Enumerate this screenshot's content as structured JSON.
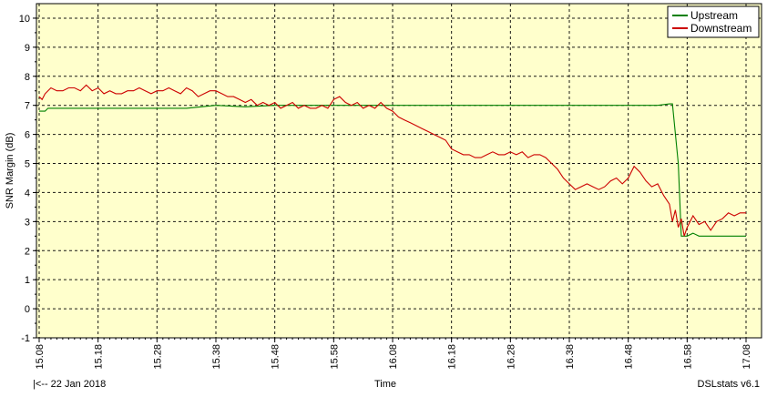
{
  "chart_data": {
    "type": "line",
    "title": "",
    "xlabel": "Time",
    "ylabel": "SNR Margin (dB)",
    "ylim": [
      -1,
      10.5
    ],
    "xlim_minutes": [
      0,
      120
    ],
    "y_ticks": [
      -1,
      0,
      1,
      2,
      3,
      4,
      5,
      6,
      7,
      8,
      9,
      10
    ],
    "x_ticks": [
      "15.08",
      "15.18",
      "15.28",
      "15.38",
      "15.48",
      "15.58",
      "16.08",
      "16.18",
      "16.28",
      "16.38",
      "16.48",
      "16.58",
      "17.08"
    ],
    "x_tick_minutes": [
      0,
      10,
      20,
      30,
      40,
      50,
      60,
      70,
      80,
      90,
      100,
      110,
      120
    ],
    "grid": true,
    "legend_position": "top-right",
    "background": "#ffffcc",
    "series": [
      {
        "name": "Upstream",
        "color": "#008000",
        "points": [
          [
            0,
            6.8
          ],
          [
            1,
            6.8
          ],
          [
            1.5,
            6.9
          ],
          [
            5,
            6.9
          ],
          [
            10,
            6.9
          ],
          [
            15,
            6.9
          ],
          [
            20,
            6.9
          ],
          [
            25,
            6.9
          ],
          [
            30,
            7.0
          ],
          [
            35,
            6.95
          ],
          [
            40,
            7.0
          ],
          [
            45,
            7.0
          ],
          [
            50,
            7.0
          ],
          [
            55,
            7.0
          ],
          [
            60,
            7.0
          ],
          [
            65,
            7.0
          ],
          [
            70,
            7.0
          ],
          [
            80,
            7.0
          ],
          [
            90,
            7.0
          ],
          [
            100,
            7.0
          ],
          [
            105,
            7.0
          ],
          [
            107,
            7.05
          ],
          [
            107.5,
            7.05
          ],
          [
            108.5,
            5.0
          ],
          [
            109,
            2.5
          ],
          [
            110,
            2.5
          ],
          [
            111,
            2.6
          ],
          [
            112,
            2.5
          ],
          [
            115,
            2.5
          ],
          [
            118,
            2.5
          ],
          [
            120,
            2.5
          ]
        ]
      },
      {
        "name": "Downstream",
        "color": "#cc0000",
        "points": [
          [
            0,
            7.3
          ],
          [
            0.5,
            7.2
          ],
          [
            1,
            7.4
          ],
          [
            2,
            7.6
          ],
          [
            3,
            7.5
          ],
          [
            4,
            7.5
          ],
          [
            5,
            7.6
          ],
          [
            6,
            7.6
          ],
          [
            7,
            7.5
          ],
          [
            8,
            7.7
          ],
          [
            9,
            7.5
          ],
          [
            10,
            7.6
          ],
          [
            11,
            7.4
          ],
          [
            12,
            7.5
          ],
          [
            13,
            7.4
          ],
          [
            14,
            7.4
          ],
          [
            15,
            7.5
          ],
          [
            16,
            7.5
          ],
          [
            17,
            7.6
          ],
          [
            18,
            7.5
          ],
          [
            19,
            7.4
          ],
          [
            20,
            7.5
          ],
          [
            21,
            7.5
          ],
          [
            22,
            7.6
          ],
          [
            23,
            7.5
          ],
          [
            24,
            7.4
          ],
          [
            25,
            7.6
          ],
          [
            26,
            7.5
          ],
          [
            27,
            7.3
          ],
          [
            28,
            7.4
          ],
          [
            29,
            7.5
          ],
          [
            30,
            7.5
          ],
          [
            31,
            7.4
          ],
          [
            32,
            7.3
          ],
          [
            33,
            7.3
          ],
          [
            34,
            7.2
          ],
          [
            35,
            7.1
          ],
          [
            36,
            7.2
          ],
          [
            37,
            7.0
          ],
          [
            38,
            7.1
          ],
          [
            39,
            7.0
          ],
          [
            40,
            7.1
          ],
          [
            41,
            6.9
          ],
          [
            42,
            7.0
          ],
          [
            43,
            7.1
          ],
          [
            44,
            6.9
          ],
          [
            45,
            7.0
          ],
          [
            46,
            6.9
          ],
          [
            47,
            6.9
          ],
          [
            48,
            7.0
          ],
          [
            49,
            6.9
          ],
          [
            50,
            7.2
          ],
          [
            51,
            7.3
          ],
          [
            52,
            7.1
          ],
          [
            53,
            7.0
          ],
          [
            54,
            7.1
          ],
          [
            55,
            6.9
          ],
          [
            56,
            7.0
          ],
          [
            57,
            6.9
          ],
          [
            58,
            7.1
          ],
          [
            59,
            6.9
          ],
          [
            60,
            6.8
          ],
          [
            61,
            6.6
          ],
          [
            62,
            6.5
          ],
          [
            63,
            6.4
          ],
          [
            64,
            6.3
          ],
          [
            65,
            6.2
          ],
          [
            66,
            6.1
          ],
          [
            67,
            6.0
          ],
          [
            68,
            5.9
          ],
          [
            69,
            5.8
          ],
          [
            70,
            5.5
          ],
          [
            71,
            5.4
          ],
          [
            72,
            5.3
          ],
          [
            73,
            5.3
          ],
          [
            74,
            5.2
          ],
          [
            75,
            5.2
          ],
          [
            76,
            5.3
          ],
          [
            77,
            5.4
          ],
          [
            78,
            5.3
          ],
          [
            79,
            5.3
          ],
          [
            80,
            5.4
          ],
          [
            81,
            5.3
          ],
          [
            82,
            5.4
          ],
          [
            83,
            5.2
          ],
          [
            84,
            5.3
          ],
          [
            85,
            5.3
          ],
          [
            86,
            5.2
          ],
          [
            87,
            5.0
          ],
          [
            88,
            4.8
          ],
          [
            89,
            4.5
          ],
          [
            90,
            4.3
          ],
          [
            91,
            4.1
          ],
          [
            92,
            4.2
          ],
          [
            93,
            4.3
          ],
          [
            94,
            4.2
          ],
          [
            95,
            4.1
          ],
          [
            96,
            4.2
          ],
          [
            97,
            4.4
          ],
          [
            98,
            4.5
          ],
          [
            99,
            4.3
          ],
          [
            100,
            4.5
          ],
          [
            101,
            4.9
          ],
          [
            102,
            4.7
          ],
          [
            103,
            4.4
          ],
          [
            104,
            4.2
          ],
          [
            105,
            4.3
          ],
          [
            106,
            3.9
          ],
          [
            107,
            3.6
          ],
          [
            107.5,
            3.0
          ],
          [
            108,
            3.4
          ],
          [
            108.5,
            2.8
          ],
          [
            109,
            3.1
          ],
          [
            109.5,
            2.5
          ],
          [
            110,
            2.8
          ],
          [
            111,
            3.2
          ],
          [
            112,
            2.9
          ],
          [
            113,
            3.0
          ],
          [
            114,
            2.7
          ],
          [
            115,
            3.0
          ],
          [
            116,
            3.1
          ],
          [
            117,
            3.3
          ],
          [
            118,
            3.2
          ],
          [
            119,
            3.3
          ],
          [
            120,
            3.3
          ]
        ]
      }
    ]
  },
  "footer": {
    "left": "|<-- 22 Jan 2018",
    "center": "Time",
    "right": "DSLstats v6.1"
  }
}
